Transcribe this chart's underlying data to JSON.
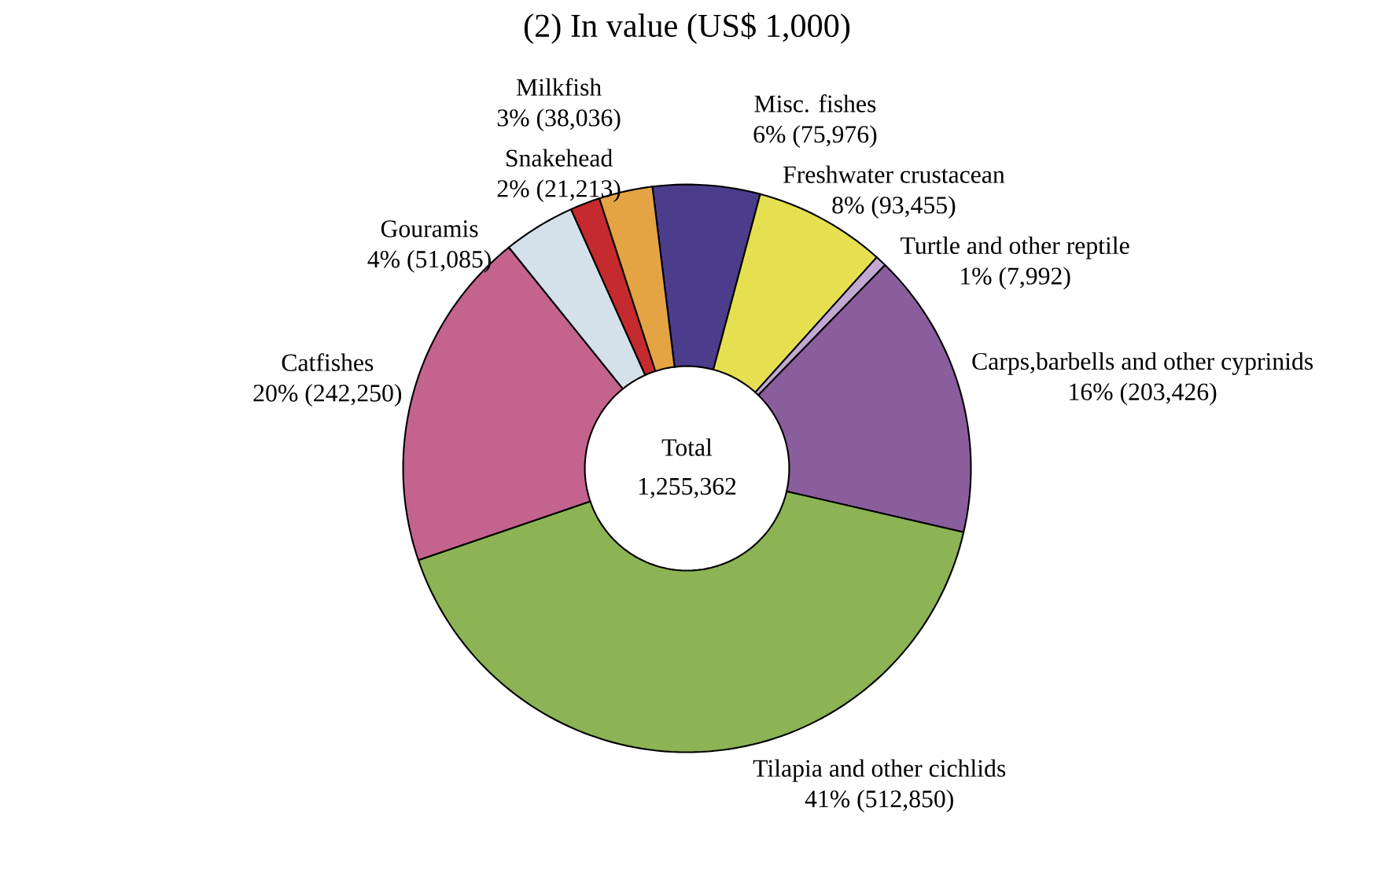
{
  "chart_data": {
    "type": "donut",
    "title": "(2) In value (US$ 1,000)",
    "categories": [
      "Misc. fishes",
      "Freshwater crustacean",
      "Turtle and other reptile",
      "Carps,barbells and other cyprinids",
      "Tilapia and other cichlids",
      "Catfishes",
      "Gouramis",
      "Snakehead",
      "Milkfish"
    ],
    "values": [
      75976,
      93455,
      7992,
      203426,
      512850,
      242250,
      51085,
      21213,
      38036
    ],
    "colors": [
      "#4b3d8c",
      "#e6e050",
      "#c4a8d4",
      "#8a5e9c",
      "#8cb454",
      "#c4648e",
      "#d4e0ea",
      "#c42a2e",
      "#e4a444"
    ],
    "value_labels": [
      "6% (75,976)",
      "8% (93,455)",
      "1% (7,992)",
      "16% (203,426)",
      "41% (512,850)",
      "20% (242,250)",
      "4% (51,085)",
      "2% (21,213)",
      "3% (38,036)"
    ],
    "annotations": [
      "Total",
      "1,255,362"
    ]
  }
}
